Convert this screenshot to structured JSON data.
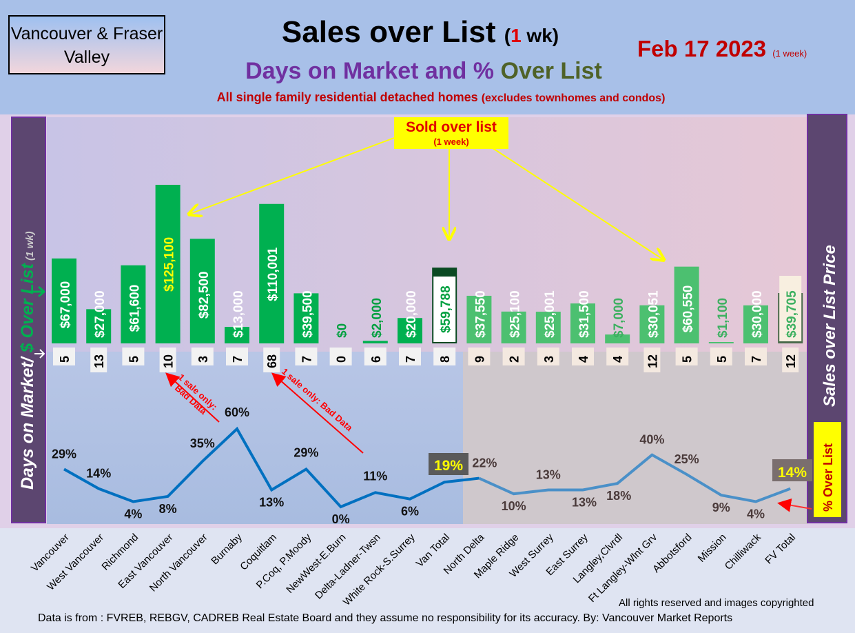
{
  "header": {
    "region": "Vancouver & Fraser Valley",
    "title": "Sales over List",
    "title_paren_open": "(",
    "title_num": "1",
    "title_unit": " wk)",
    "subtitle_a": "Days on Market and % ",
    "subtitle_b": "Over List",
    "description": "All single family residential detached homes ",
    "description_small": "(excludes townhomes and condos)",
    "date": "Feb 17  2023 ",
    "date_small": "(1 week)"
  },
  "labels": {
    "left_a": "Days on Market/ ",
    "left_b": "$ Over List",
    "left_c": " (1 wk)",
    "right": "Sales over List Price",
    "pct_box": "% Over List",
    "callout": "Sold over list",
    "callout_sub": "(1 week)",
    "bad_data_1": "1 sale only: Bad Data",
    "bad_data_2": "1 sale only: Bad Data",
    "van_total_pct": "19%",
    "fv_total_pct": "14%"
  },
  "footer": {
    "rights": "All rights reserved and  images copyrighted",
    "source": "Data is from : FVREB, REBGV, CADREB Real Estate Board and they assume no responsibility for its accuracy. By: Vancouver Market Reports"
  },
  "colors": {
    "bar_van": "#00b050",
    "bar_fv": "#4cc070",
    "line_van": "#0070c0",
    "line_fv": "#4a90c8"
  },
  "chart_data": {
    "type": "bar+line",
    "categories": [
      "Vancouver",
      "West Vancouver",
      "Richmond",
      "East Vancouver",
      "North Vancouver",
      "Burnaby",
      "Coquitlam",
      "P.Coq, P.Moody",
      "NewWest-E.Burn",
      "Delta-Ladner-Twsn",
      "White Rock-S.Surrey",
      "Van Total",
      "North Delta",
      "Maple Ridge",
      "West Surrey",
      "East Surrey",
      "Langley,Clvrdl",
      "Ft Langley-Wlnt Grv",
      "Abbotsford",
      "Mission",
      "Chilliwack",
      "FV Total"
    ],
    "series": [
      {
        "name": "$ Over List",
        "type": "bar",
        "values": [
          67000,
          27000,
          61600,
          125100,
          82500,
          13000,
          110001,
          39500,
          0,
          2000,
          20000,
          59788,
          37550,
          25100,
          25001,
          31500,
          7000,
          30051,
          60550,
          1100,
          30000,
          39705
        ],
        "labels": [
          "$67,000",
          "$27,000",
          "$61,600",
          "$125,100",
          "$82,500",
          "$13,000",
          "$110,001",
          "$39,500",
          "$0",
          "$2,000",
          "$20,000",
          "$59,788",
          "$37,550",
          "$25,100",
          "$25,001",
          "$31,500",
          "$7,000",
          "$30,051",
          "$60,550",
          "$1,100",
          "$30,000",
          "$39,705"
        ]
      },
      {
        "name": "Days on Market",
        "type": "label",
        "values": [
          5,
          13,
          5,
          10,
          3,
          7,
          68,
          7,
          0,
          6,
          7,
          8,
          9,
          2,
          3,
          4,
          4,
          12,
          5,
          5,
          7,
          12
        ]
      },
      {
        "name": "% Over List",
        "type": "line",
        "values": [
          29,
          14,
          4,
          8,
          35,
          60,
          13,
          29,
          0,
          11,
          6,
          19,
          22,
          10,
          13,
          13,
          18,
          40,
          25,
          9,
          4,
          14
        ]
      }
    ]
  }
}
